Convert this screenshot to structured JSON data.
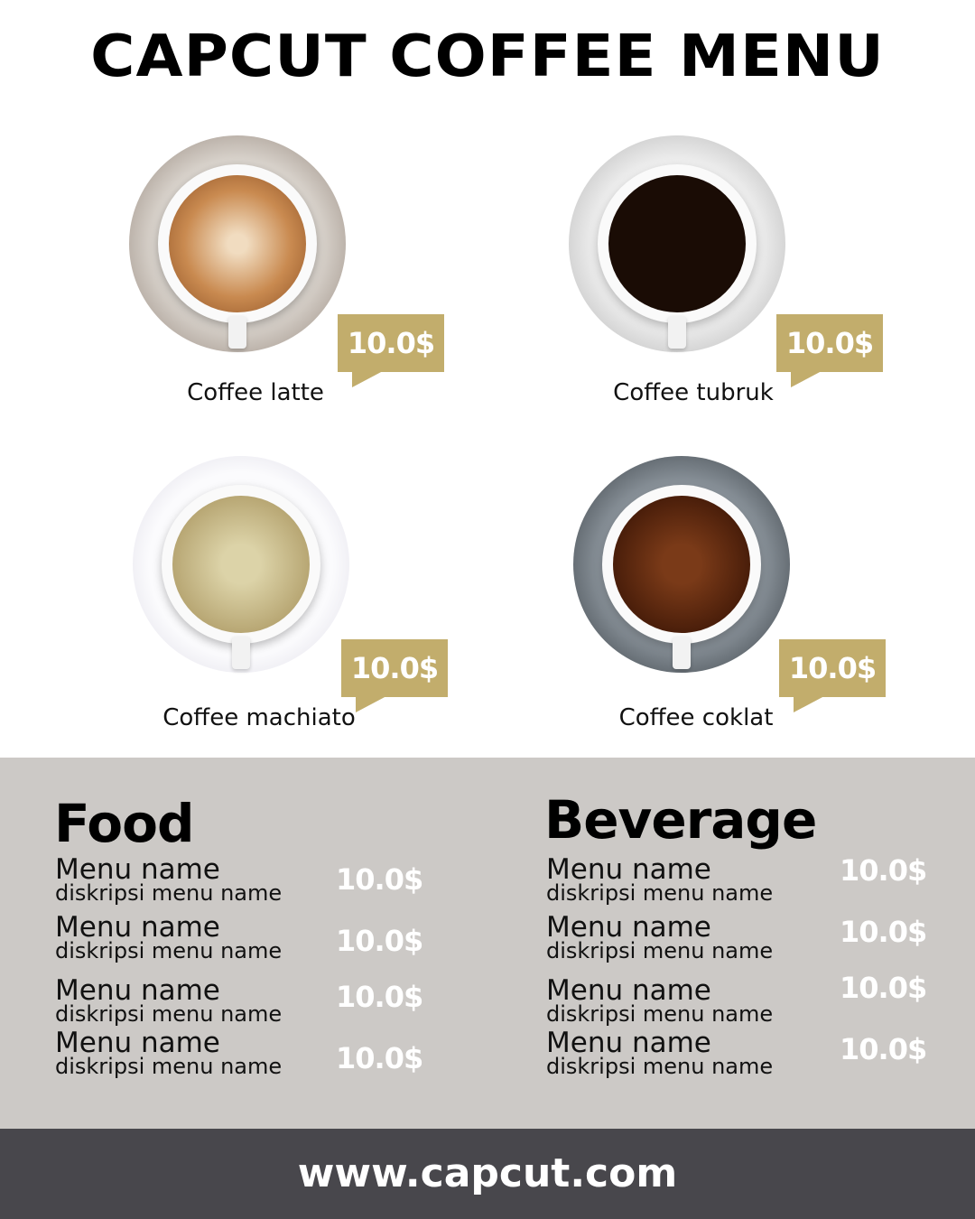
{
  "title": "CAPCUT COFFEE MENU",
  "colors": {
    "accent": "#c2ad6c",
    "panel": "#ccc9c6",
    "footer": "#48474c"
  },
  "products": [
    {
      "name": "Coffee latte",
      "price": "10.0$"
    },
    {
      "name": "Coffee tubruk",
      "price": "10.0$"
    },
    {
      "name": "Coffee machiato",
      "price": "10.0$"
    },
    {
      "name": "Coffee coklat",
      "price": "10.0$"
    }
  ],
  "food": {
    "title": "Food",
    "items": [
      {
        "name": "Menu name",
        "desc": "diskripsi menu name",
        "price": "10.0$"
      },
      {
        "name": "Menu name",
        "desc": "diskripsi menu name",
        "price": "10.0$"
      },
      {
        "name": "Menu name",
        "desc": "diskripsi menu name",
        "price": "10.0$"
      },
      {
        "name": "Menu name",
        "desc": "diskripsi menu name",
        "price": "10.0$"
      }
    ]
  },
  "beverage": {
    "title": "Beverage",
    "items": [
      {
        "name": "Menu name",
        "desc": "diskripsi menu name",
        "price": "10.0$"
      },
      {
        "name": "Menu name",
        "desc": "diskripsi menu name",
        "price": "10.0$"
      },
      {
        "name": "Menu name",
        "desc": "diskripsi menu name",
        "price": "10.0$"
      },
      {
        "name": "Menu name",
        "desc": "diskripsi menu name",
        "price": "10.0$"
      }
    ]
  },
  "footer": "www.capcut.com"
}
